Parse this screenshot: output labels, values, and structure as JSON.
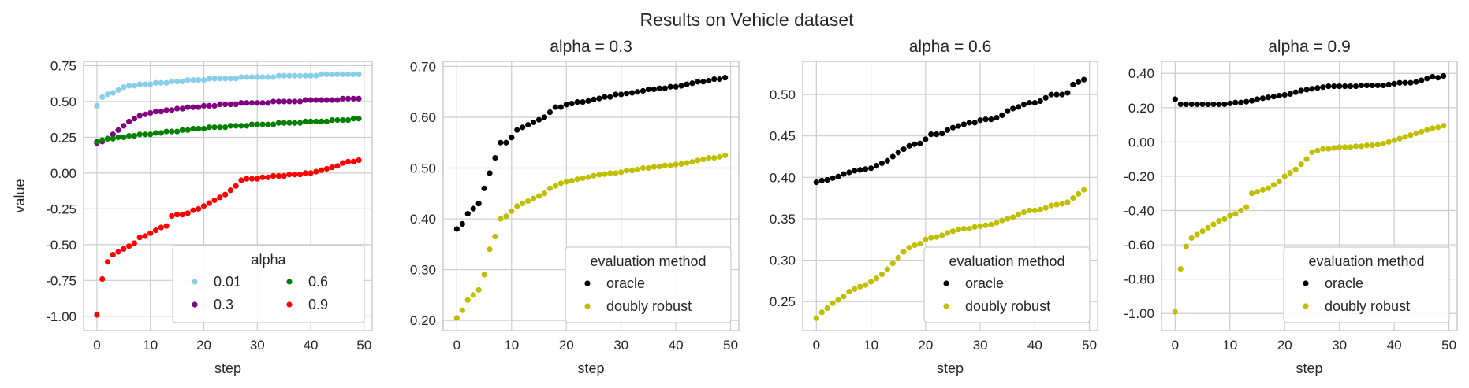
{
  "figure": {
    "suptitle": "Results on Vehicle dataset"
  },
  "colors": {
    "alpha_0_01": "#87ceeb",
    "alpha_0_3": "#800080",
    "alpha_0_6": "#008000",
    "alpha_0_9": "#ff0000",
    "oracle": "#000000",
    "doubly_robust": "#bfbf00",
    "grid": "#cccccc",
    "frame": "#cccccc"
  },
  "chart_data": [
    {
      "type": "scatter",
      "title": "",
      "xlabel": "step",
      "ylabel": "value",
      "xlim": [
        -2.5,
        51.5
      ],
      "ylim": [
        -1.1,
        0.78
      ],
      "xticks": [
        0,
        10,
        20,
        30,
        40,
        50
      ],
      "xtick_labels": [
        "0",
        "10",
        "20",
        "30",
        "40",
        "50"
      ],
      "yticks": [
        0.75,
        0.5,
        0.25,
        0.0,
        -0.25,
        -0.5,
        -0.75,
        -1.0
      ],
      "ytick_labels": [
        "0.75",
        "0.50",
        "0.25",
        "0.00",
        "-0.25",
        "-0.50",
        "-0.75",
        "-1.00"
      ],
      "legend": {
        "title": "alpha",
        "position": "lower-right",
        "columns": 2,
        "entries": [
          "0.01",
          "0.6",
          "0.3",
          "0.9"
        ],
        "entry_colors": [
          "alpha_0_01",
          "alpha_0_6",
          "alpha_0_3",
          "alpha_0_9"
        ]
      },
      "series": [
        {
          "name": "0.01",
          "color": "alpha_0_01",
          "values": [
            0.47,
            0.53,
            0.55,
            0.56,
            0.58,
            0.6,
            0.61,
            0.61,
            0.62,
            0.62,
            0.62,
            0.63,
            0.63,
            0.63,
            0.64,
            0.64,
            0.64,
            0.65,
            0.65,
            0.65,
            0.65,
            0.66,
            0.66,
            0.66,
            0.66,
            0.66,
            0.66,
            0.67,
            0.67,
            0.67,
            0.67,
            0.67,
            0.67,
            0.67,
            0.68,
            0.68,
            0.68,
            0.68,
            0.68,
            0.68,
            0.68,
            0.68,
            0.69,
            0.69,
            0.69,
            0.69,
            0.69,
            0.69,
            0.69,
            0.69
          ]
        },
        {
          "name": "0.3",
          "color": "alpha_0_3",
          "values": [
            0.21,
            0.22,
            0.24,
            0.27,
            0.3,
            0.33,
            0.36,
            0.38,
            0.4,
            0.41,
            0.42,
            0.43,
            0.43,
            0.44,
            0.44,
            0.45,
            0.45,
            0.46,
            0.46,
            0.46,
            0.47,
            0.47,
            0.47,
            0.48,
            0.48,
            0.48,
            0.48,
            0.49,
            0.49,
            0.49,
            0.49,
            0.49,
            0.49,
            0.5,
            0.5,
            0.5,
            0.5,
            0.5,
            0.5,
            0.51,
            0.51,
            0.51,
            0.51,
            0.51,
            0.51,
            0.51,
            0.52,
            0.52,
            0.52,
            0.52
          ]
        },
        {
          "name": "0.6",
          "color": "alpha_0_6",
          "values": [
            0.22,
            0.23,
            0.24,
            0.24,
            0.25,
            0.25,
            0.26,
            0.26,
            0.27,
            0.27,
            0.27,
            0.28,
            0.28,
            0.29,
            0.29,
            0.29,
            0.3,
            0.3,
            0.31,
            0.31,
            0.31,
            0.32,
            0.32,
            0.32,
            0.32,
            0.33,
            0.33,
            0.33,
            0.33,
            0.34,
            0.34,
            0.34,
            0.34,
            0.34,
            0.35,
            0.35,
            0.35,
            0.35,
            0.35,
            0.36,
            0.36,
            0.36,
            0.36,
            0.36,
            0.37,
            0.37,
            0.37,
            0.37,
            0.38,
            0.38
          ]
        },
        {
          "name": "0.9",
          "color": "alpha_0_9",
          "values": [
            -0.99,
            -0.74,
            -0.62,
            -0.57,
            -0.55,
            -0.53,
            -0.51,
            -0.49,
            -0.45,
            -0.44,
            -0.42,
            -0.4,
            -0.38,
            -0.37,
            -0.3,
            -0.29,
            -0.29,
            -0.28,
            -0.26,
            -0.25,
            -0.23,
            -0.21,
            -0.19,
            -0.17,
            -0.15,
            -0.12,
            -0.09,
            -0.05,
            -0.04,
            -0.04,
            -0.04,
            -0.03,
            -0.03,
            -0.02,
            -0.02,
            -0.02,
            -0.01,
            -0.01,
            -0.01,
            0.0,
            0.0,
            0.01,
            0.02,
            0.03,
            0.04,
            0.05,
            0.07,
            0.08,
            0.08,
            0.09
          ]
        }
      ]
    },
    {
      "type": "scatter",
      "title": "alpha = 0.3",
      "xlabel": "step",
      "ylabel": "",
      "xlim": [
        -2.5,
        51.5
      ],
      "ylim": [
        0.18,
        0.71
      ],
      "xticks": [
        0,
        10,
        20,
        30,
        40,
        50
      ],
      "xtick_labels": [
        "0",
        "10",
        "20",
        "30",
        "40",
        "50"
      ],
      "yticks": [
        0.7,
        0.6,
        0.5,
        0.4,
        0.3,
        0.2
      ],
      "ytick_labels": [
        "0.70",
        "0.60",
        "0.50",
        "0.40",
        "0.30",
        "0.20"
      ],
      "legend": {
        "title": "evaluation method",
        "position": "lower-right",
        "columns": 1,
        "entries": [
          "oracle",
          "doubly robust"
        ],
        "entry_colors": [
          "oracle",
          "doubly_robust"
        ]
      },
      "series": [
        {
          "name": "oracle",
          "color": "oracle",
          "values": [
            0.38,
            0.39,
            0.41,
            0.42,
            0.43,
            0.46,
            0.49,
            0.52,
            0.55,
            0.55,
            0.56,
            0.575,
            0.58,
            0.585,
            0.59,
            0.595,
            0.6,
            0.61,
            0.62,
            0.62,
            0.625,
            0.627,
            0.63,
            0.63,
            0.632,
            0.635,
            0.637,
            0.64,
            0.64,
            0.645,
            0.645,
            0.647,
            0.648,
            0.65,
            0.652,
            0.655,
            0.655,
            0.657,
            0.657,
            0.66,
            0.66,
            0.662,
            0.665,
            0.667,
            0.67,
            0.67,
            0.672,
            0.675,
            0.675,
            0.678
          ]
        },
        {
          "name": "doubly robust",
          "color": "doubly_robust",
          "values": [
            0.205,
            0.22,
            0.24,
            0.25,
            0.26,
            0.29,
            0.34,
            0.365,
            0.4,
            0.405,
            0.415,
            0.425,
            0.43,
            0.435,
            0.44,
            0.445,
            0.45,
            0.46,
            0.465,
            0.47,
            0.473,
            0.475,
            0.478,
            0.48,
            0.482,
            0.485,
            0.487,
            0.488,
            0.49,
            0.49,
            0.492,
            0.495,
            0.495,
            0.497,
            0.5,
            0.5,
            0.502,
            0.503,
            0.505,
            0.505,
            0.507,
            0.508,
            0.51,
            0.512,
            0.515,
            0.517,
            0.52,
            0.52,
            0.522,
            0.525
          ]
        }
      ]
    },
    {
      "type": "scatter",
      "title": "alpha = 0.6",
      "xlabel": "step",
      "ylabel": "",
      "xlim": [
        -2.5,
        51.5
      ],
      "ylim": [
        0.215,
        0.54
      ],
      "xticks": [
        0,
        10,
        20,
        30,
        40,
        50
      ],
      "xtick_labels": [
        "0",
        "10",
        "20",
        "30",
        "40",
        "50"
      ],
      "yticks": [
        0.5,
        0.45,
        0.4,
        0.35,
        0.3,
        0.25
      ],
      "ytick_labels": [
        "0.50",
        "0.45",
        "0.40",
        "0.35",
        "0.30",
        "0.25"
      ],
      "legend": {
        "title": "evaluation method",
        "position": "lower-right",
        "columns": 1,
        "entries": [
          "oracle",
          "doubly robust"
        ],
        "entry_colors": [
          "oracle",
          "doubly_robust"
        ]
      },
      "series": [
        {
          "name": "oracle",
          "color": "oracle",
          "values": [
            0.394,
            0.396,
            0.397,
            0.399,
            0.401,
            0.404,
            0.406,
            0.408,
            0.409,
            0.41,
            0.411,
            0.414,
            0.417,
            0.42,
            0.425,
            0.43,
            0.434,
            0.438,
            0.44,
            0.441,
            0.446,
            0.452,
            0.452,
            0.453,
            0.457,
            0.46,
            0.462,
            0.464,
            0.466,
            0.466,
            0.469,
            0.47,
            0.47,
            0.472,
            0.475,
            0.48,
            0.483,
            0.485,
            0.488,
            0.49,
            0.49,
            0.492,
            0.496,
            0.5,
            0.5,
            0.5,
            0.502,
            0.512,
            0.515,
            0.518
          ]
        },
        {
          "name": "doubly robust",
          "color": "doubly_robust",
          "values": [
            0.23,
            0.237,
            0.242,
            0.248,
            0.252,
            0.256,
            0.262,
            0.265,
            0.268,
            0.27,
            0.274,
            0.278,
            0.283,
            0.289,
            0.296,
            0.303,
            0.31,
            0.315,
            0.318,
            0.32,
            0.325,
            0.327,
            0.328,
            0.33,
            0.333,
            0.335,
            0.337,
            0.338,
            0.338,
            0.34,
            0.341,
            0.342,
            0.343,
            0.345,
            0.348,
            0.35,
            0.352,
            0.355,
            0.358,
            0.36,
            0.36,
            0.361,
            0.363,
            0.366,
            0.367,
            0.368,
            0.37,
            0.375,
            0.38,
            0.385
          ]
        }
      ]
    },
    {
      "type": "scatter",
      "title": "alpha = 0.9",
      "xlabel": "step",
      "ylabel": "",
      "xlim": [
        -2.5,
        51.5
      ],
      "ylim": [
        -1.1,
        0.47
      ],
      "xticks": [
        0,
        10,
        20,
        30,
        40,
        50
      ],
      "xtick_labels": [
        "0",
        "10",
        "20",
        "30",
        "40",
        "50"
      ],
      "yticks": [
        0.4,
        0.2,
        0.0,
        -0.2,
        -0.4,
        -0.6,
        -0.8,
        -1.0
      ],
      "ytick_labels": [
        "0.40",
        "0.20",
        "0.00",
        "-0.20",
        "-0.40",
        "-0.60",
        "-0.80",
        "-1.00"
      ],
      "legend": {
        "title": "evaluation method",
        "position": "lower-right",
        "columns": 1,
        "entries": [
          "oracle",
          "doubly robust"
        ],
        "entry_colors": [
          "oracle",
          "doubly_robust"
        ]
      },
      "series": [
        {
          "name": "oracle",
          "color": "oracle",
          "values": [
            0.25,
            0.22,
            0.22,
            0.22,
            0.22,
            0.22,
            0.22,
            0.22,
            0.22,
            0.22,
            0.225,
            0.23,
            0.23,
            0.235,
            0.24,
            0.25,
            0.255,
            0.26,
            0.265,
            0.27,
            0.275,
            0.28,
            0.29,
            0.3,
            0.305,
            0.31,
            0.315,
            0.32,
            0.325,
            0.325,
            0.325,
            0.325,
            0.325,
            0.325,
            0.33,
            0.33,
            0.33,
            0.33,
            0.33,
            0.335,
            0.34,
            0.345,
            0.345,
            0.345,
            0.35,
            0.36,
            0.37,
            0.38,
            0.375,
            0.385
          ]
        },
        {
          "name": "doubly robust",
          "color": "doubly_robust",
          "values": [
            -0.99,
            -0.74,
            -0.61,
            -0.56,
            -0.54,
            -0.52,
            -0.5,
            -0.48,
            -0.46,
            -0.45,
            -0.43,
            -0.42,
            -0.4,
            -0.38,
            -0.3,
            -0.29,
            -0.28,
            -0.27,
            -0.25,
            -0.23,
            -0.2,
            -0.18,
            -0.16,
            -0.13,
            -0.1,
            -0.06,
            -0.05,
            -0.04,
            -0.04,
            -0.035,
            -0.03,
            -0.03,
            -0.03,
            -0.025,
            -0.025,
            -0.02,
            -0.02,
            -0.015,
            -0.01,
            0.0,
            0.01,
            0.02,
            0.03,
            0.04,
            0.05,
            0.06,
            0.07,
            0.08,
            0.085,
            0.095
          ]
        }
      ]
    }
  ]
}
